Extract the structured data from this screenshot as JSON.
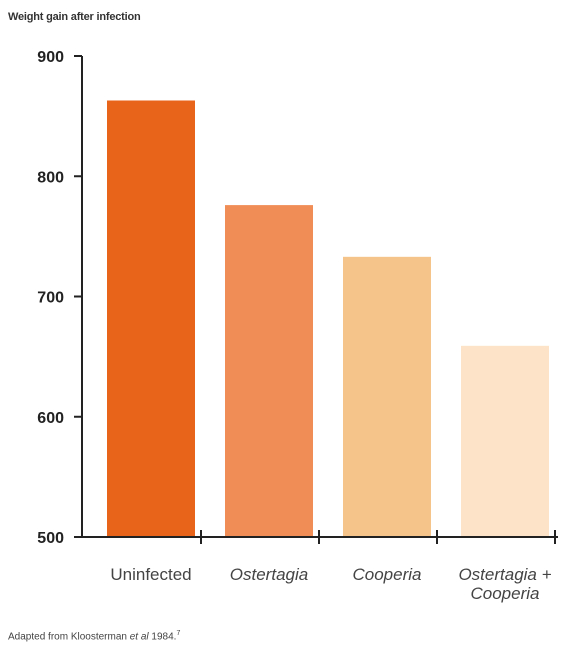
{
  "chart_data": {
    "type": "bar",
    "title": "Weight gain after infection",
    "categories": [
      "Uninfected",
      "Ostertagia",
      "Cooperia",
      "Ostertagia + Cooperia"
    ],
    "category_italic": [
      false,
      true,
      true,
      true
    ],
    "values": [
      863,
      776,
      733,
      659
    ],
    "colors": [
      "#e8641b",
      "#f08c55",
      "#f5c48a",
      "#fde4c8"
    ],
    "ylim": [
      500,
      900
    ],
    "yticks": [
      500,
      600,
      700,
      800,
      900
    ],
    "grid": false,
    "source": {
      "text": "Adapted from Kloosterman",
      "italic": "et al",
      "year": "1984.",
      "ref": "7"
    }
  }
}
